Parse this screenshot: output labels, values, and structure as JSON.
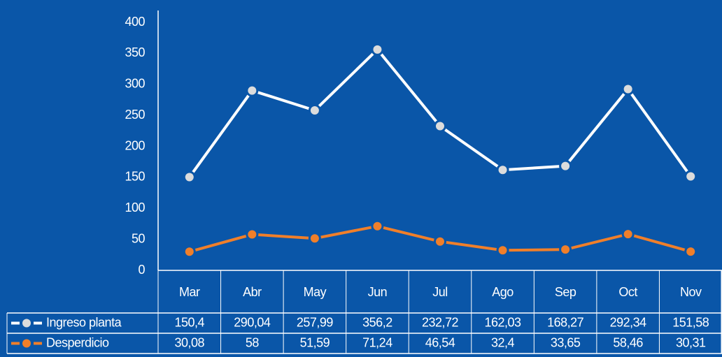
{
  "chart_data": {
    "type": "line",
    "categories": [
      "Mar",
      "Abr",
      "May",
      "Jun",
      "Jul",
      "Ago",
      "Sep",
      "Oct",
      "Nov"
    ],
    "series": [
      {
        "name": "Ingreso planta",
        "color": "#ffffff",
        "marker_color": "#dcdcdc",
        "values": [
          150.4,
          290.04,
          257.99,
          356.2,
          232.72,
          162.03,
          168.27,
          292.34,
          151.58
        ],
        "value_labels": [
          "150,4",
          "290,04",
          "257,99",
          "356,2",
          "232,72",
          "162,03",
          "168,27",
          "292,34",
          "151,58"
        ]
      },
      {
        "name": "Desperdicio",
        "color": "#f07f2a",
        "marker_color": "#f07f2a",
        "values": [
          30.08,
          58,
          51.59,
          71.24,
          46.54,
          32.4,
          33.65,
          58.46,
          30.31
        ],
        "value_labels": [
          "30,08",
          "58",
          "51,59",
          "71,24",
          "46,54",
          "32,4",
          "33,65",
          "58,46",
          "30,31"
        ]
      }
    ],
    "ylim": [
      0,
      400
    ],
    "yticks": [
      0,
      50,
      100,
      150,
      200,
      250,
      300,
      350,
      400
    ],
    "grid": false
  }
}
